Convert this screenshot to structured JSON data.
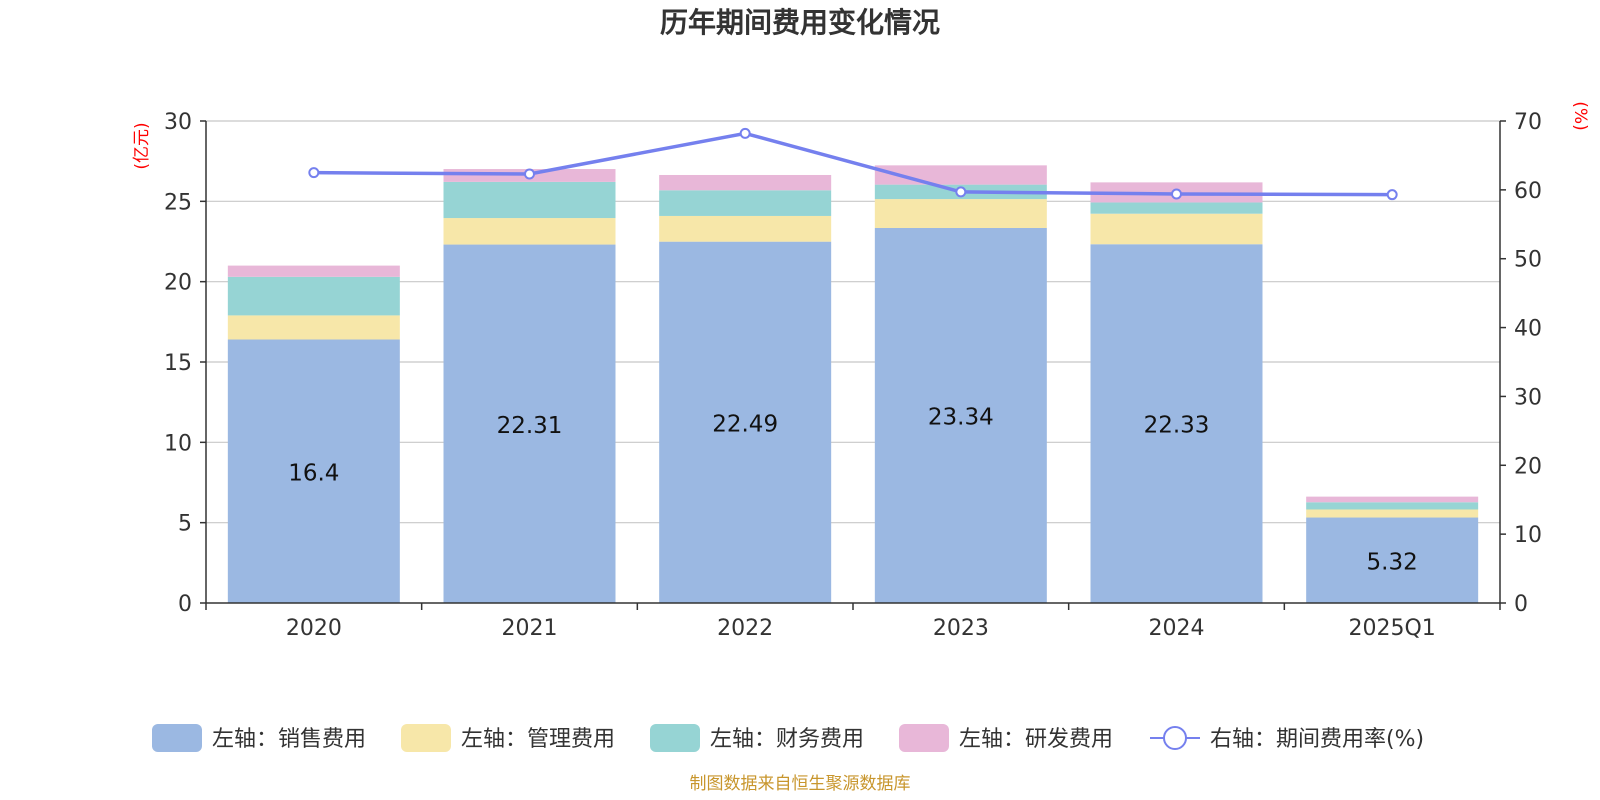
{
  "chart_data": {
    "type": "bar",
    "title": "历年期间费用变化情况",
    "categories": [
      "2020",
      "2021",
      "2022",
      "2023",
      "2024",
      "2025Q1"
    ],
    "left_axis": {
      "unit_label": "(亿元)",
      "ylim": [
        0,
        30
      ],
      "ticks": [
        "0",
        "5",
        "10",
        "15",
        "20",
        "25",
        "30"
      ]
    },
    "right_axis": {
      "unit_label": "(%)",
      "ylim": [
        0,
        70
      ],
      "ticks": [
        "0",
        "10",
        "20",
        "30",
        "40",
        "50",
        "60",
        "70"
      ]
    },
    "stacked": true,
    "series": [
      {
        "name": "左轴：销售费用",
        "axis": "left",
        "type": "bar",
        "color": "#9bb8e2",
        "values": [
          16.4,
          22.31,
          22.49,
          23.34,
          22.33,
          5.32
        ],
        "labels": [
          "16.4",
          "22.31",
          "22.49",
          "23.34",
          "22.33",
          "5.32"
        ]
      },
      {
        "name": "左轴：管理费用",
        "axis": "left",
        "type": "bar",
        "color": "#f7e7a9",
        "values": [
          1.5,
          1.65,
          1.6,
          1.8,
          1.9,
          0.5
        ]
      },
      {
        "name": "左轴：财务费用",
        "axis": "left",
        "type": "bar",
        "color": "#96d4d4",
        "values": [
          2.4,
          2.25,
          1.6,
          0.9,
          0.7,
          0.45
        ]
      },
      {
        "name": "左轴：研发费用",
        "axis": "left",
        "type": "bar",
        "color": "#e8b7d8",
        "values": [
          0.7,
          0.8,
          0.95,
          1.2,
          1.25,
          0.35
        ]
      },
      {
        "name": "右轴：期间费用率(%)",
        "axis": "right",
        "type": "line",
        "color": "#7580ee",
        "values": [
          62.5,
          62.3,
          68.2,
          59.7,
          59.4,
          59.3
        ]
      }
    ],
    "grid": true,
    "legend_position": "bottom"
  },
  "source_note": "制图数据来自恒生聚源数据库"
}
